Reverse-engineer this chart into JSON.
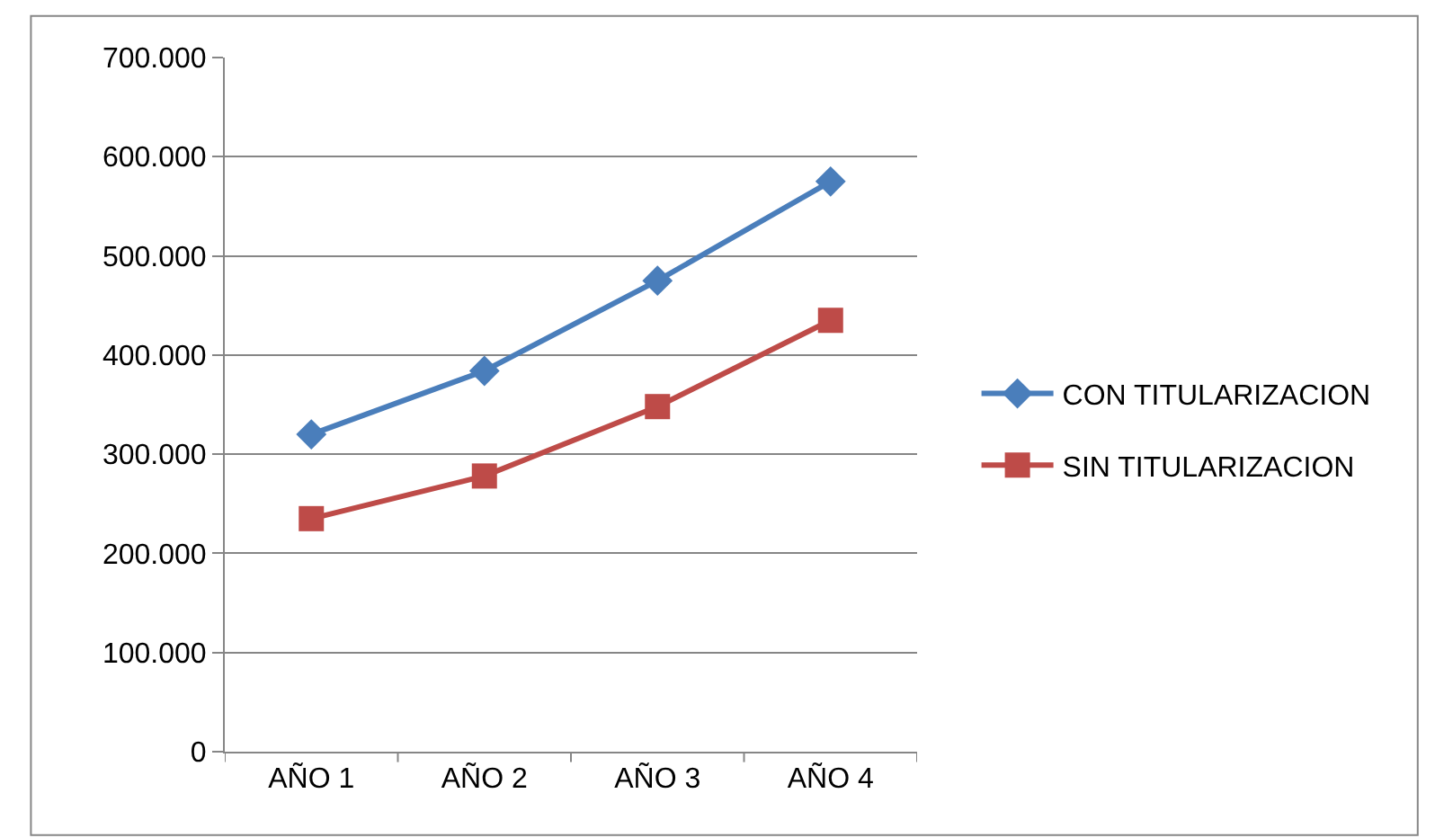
{
  "chart_data": {
    "type": "line",
    "categories": [
      "AÑO 1",
      "AÑO 2",
      "AÑO 3",
      "AÑO 4"
    ],
    "series": [
      {
        "name": "CON TITULARIZACION",
        "color": "#4a7ebb",
        "marker": "diamond",
        "values": [
          320000,
          384000,
          475000,
          575000
        ]
      },
      {
        "name": "SIN TITULARIZACION",
        "color": "#be4b48",
        "marker": "square",
        "values": [
          235000,
          278000,
          348000,
          435000
        ]
      }
    ],
    "ylim": [
      0,
      700000
    ],
    "yticks": [
      0,
      {
        "value": 100000,
        "label": "100.000"
      },
      {
        "value": 200000,
        "label": "200.000"
      },
      {
        "value": 300000,
        "label": "300.000"
      },
      {
        "value": 400000,
        "label": "400.000"
      },
      {
        "value": 500000,
        "label": "500.000"
      },
      {
        "value": 600000,
        "label": "600.000"
      },
      {
        "value": 700000,
        "label": "700.000"
      }
    ],
    "grid": "y",
    "legend": "right",
    "line_style": "solid"
  }
}
